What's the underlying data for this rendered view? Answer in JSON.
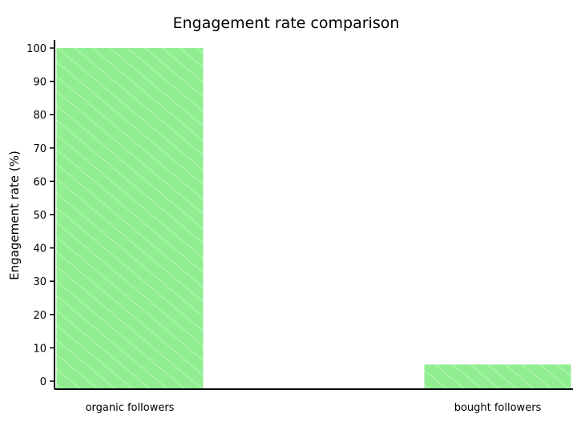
{
  "chart_data": {
    "type": "bar",
    "title": "Engagement rate comparison",
    "xlabel": "",
    "ylabel": "Engagement rate (%)",
    "categories": [
      "organic followers",
      "bought followers"
    ],
    "values": [
      100,
      5
    ],
    "ylim": [
      0,
      100
    ],
    "yticks": [
      0,
      10,
      20,
      30,
      40,
      50,
      60,
      70,
      80,
      90,
      100
    ],
    "grid": false,
    "bar_color": "#90ee90",
    "hatch_color": "#ffffff",
    "axis_color": "#000000"
  }
}
